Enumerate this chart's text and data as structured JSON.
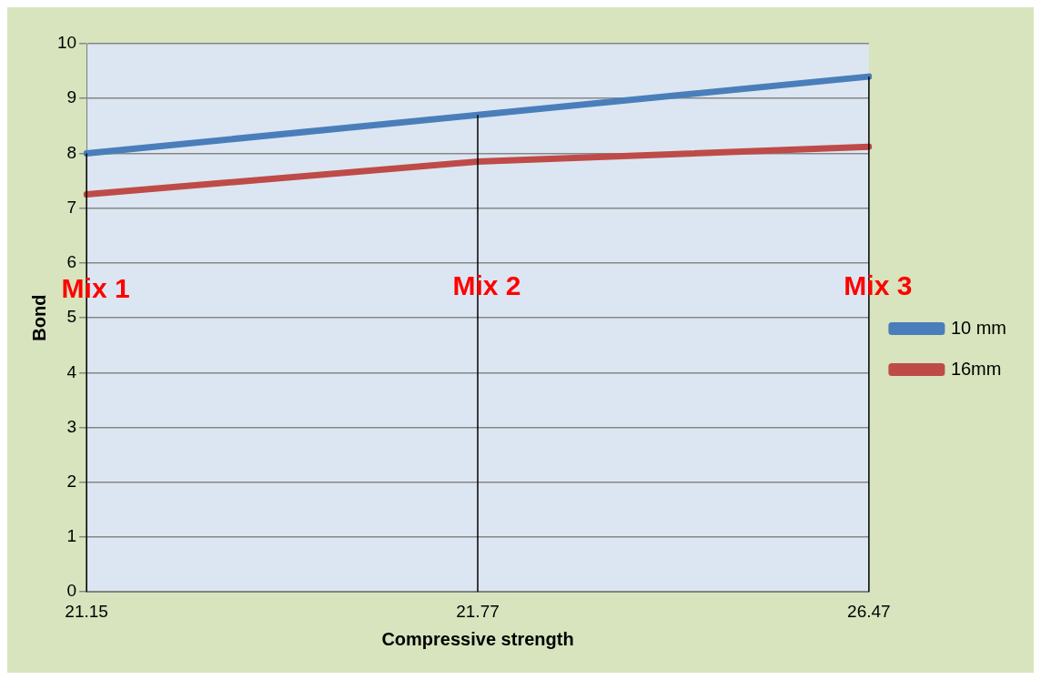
{
  "chart_data": {
    "type": "line",
    "xlabel": "Compressive strength",
    "ylabel": "Bond",
    "categories": [
      "21.15",
      "21.77",
      "26.47"
    ],
    "series": [
      {
        "name": "10 mm",
        "color": "#4a7ebb",
        "values": [
          8.0,
          8.7,
          9.4
        ]
      },
      {
        "name": "16mm",
        "color": "#be4b48",
        "values": [
          7.25,
          7.85,
          8.12
        ]
      }
    ],
    "ylim": [
      0,
      10
    ],
    "yticks": [
      0,
      1,
      2,
      3,
      4,
      5,
      6,
      7,
      8,
      9,
      10
    ],
    "grid": "y",
    "legend": "right",
    "marker": "none",
    "line_style": "solid",
    "ref_lines": [
      {
        "axis": "x",
        "value": "21.15",
        "color": "#000000"
      },
      {
        "axis": "x",
        "value": "21.77",
        "color": "#000000"
      },
      {
        "axis": "x",
        "value": "26.47",
        "color": "#000000"
      }
    ],
    "annotations": [
      {
        "text": "Mix 1",
        "x": "21.15",
        "y": 5.5
      },
      {
        "text": "Mix 2",
        "x": "21.77",
        "y": 5.55
      },
      {
        "text": "Mix 3",
        "x": "26.47",
        "y": 5.55
      }
    ]
  }
}
